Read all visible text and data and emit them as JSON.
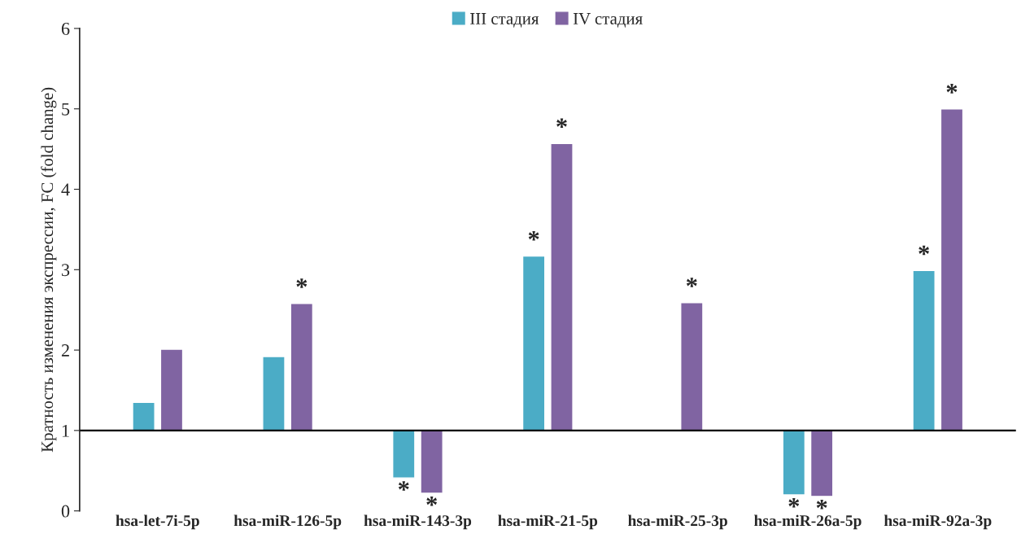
{
  "chart_data": {
    "type": "bar",
    "ylabel": "Кратность изменения экспрессии, FC (fold change)",
    "categories": [
      "hsa-let-7i-5p",
      "hsa-miR-126-5p",
      "hsa-miR-143-3p",
      "hsa-miR-21-5p",
      "hsa-miR-25-3p",
      "hsa-miR-26a-5p",
      "hsa-miR-92a-3p"
    ],
    "series": [
      {
        "name": "III стадия",
        "color": "#4bacc6",
        "base": [
          1,
          1,
          1,
          1,
          null,
          1,
          1
        ],
        "values": [
          0.35,
          0.92,
          -0.59,
          2.17,
          null,
          -0.8,
          1.99
        ],
        "value_labels": [
          null,
          null,
          "*",
          "*",
          null,
          "*",
          "*"
        ]
      },
      {
        "name": "IV стадия",
        "color": "#8064a2",
        "base": [
          1,
          1,
          1,
          1,
          1,
          1,
          1
        ],
        "values": [
          1.01,
          1.58,
          -0.78,
          3.57,
          1.59,
          -0.82,
          4.0
        ],
        "value_labels": [
          null,
          "*",
          "*",
          "*",
          "*",
          "*",
          "*"
        ]
      }
    ],
    "ref_lines": [
      {
        "axis": "y",
        "value": 1,
        "color": "#000000"
      }
    ],
    "ylim": [
      0,
      6
    ],
    "yticks": [
      0,
      1,
      2,
      3,
      4,
      5,
      6
    ],
    "legend": "top"
  }
}
